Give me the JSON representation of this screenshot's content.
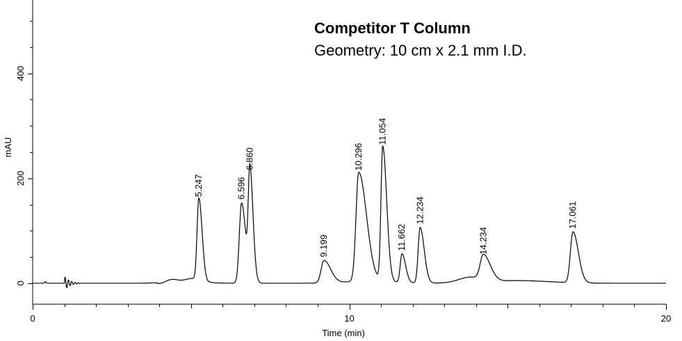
{
  "chart_data": {
    "type": "line",
    "title": "Competitor T Column",
    "subtitle": "Geometry:  10 cm x 2.1 mm I.D.",
    "xlabel": "Time (min)",
    "ylabel": "mAU",
    "xlim": [
      0,
      20
    ],
    "ylim": [
      -40,
      540
    ],
    "x_ticks": [
      0,
      10,
      20
    ],
    "y_ticks": [
      0,
      200,
      400
    ],
    "grid": false,
    "peaks": [
      {
        "rt": 5.247,
        "label": "5.247",
        "height": 158
      },
      {
        "rt": 6.596,
        "label": "6.596",
        "height": 153
      },
      {
        "rt": 6.86,
        "label": "6.860",
        "height": 209
      },
      {
        "rt": 9.199,
        "label": "9.199",
        "height": 43
      },
      {
        "rt": 10.296,
        "label": "10.296",
        "height": 208
      },
      {
        "rt": 11.054,
        "label": "11.054",
        "height": 257
      },
      {
        "rt": 11.662,
        "label": "11.662",
        "height": 55
      },
      {
        "rt": 12.234,
        "label": "12.234",
        "height": 106
      },
      {
        "rt": 14.234,
        "label": "14.234",
        "height": 48
      },
      {
        "rt": 17.061,
        "label": "17.061",
        "height": 97
      }
    ]
  }
}
